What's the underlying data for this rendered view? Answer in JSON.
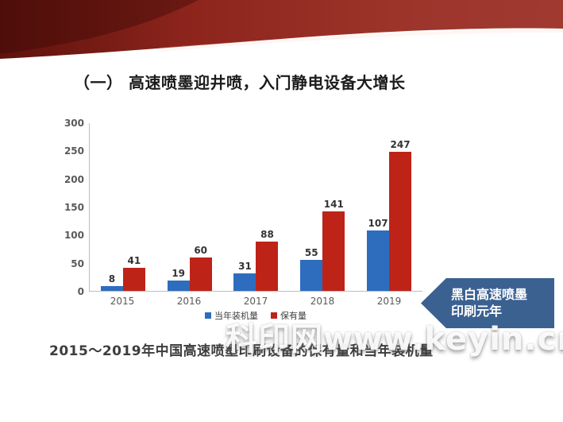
{
  "slide": {
    "title": "（一） 高速喷墨迎井喷，入门静电设备大增长",
    "caption": "2015～2019年中国高速喷墨印刷设备的保有量和当年装机量",
    "watermark": "科印网www.keyin.cn",
    "callout": {
      "line1": "黑白高速喷墨",
      "line2": "印刷元年",
      "color": "#3B6191"
    },
    "ribbon_colors": {
      "dark": "#631510",
      "mid": "#8E251D",
      "light": "#A03A31"
    }
  },
  "chart_data": {
    "type": "bar",
    "title": "",
    "xlabel": "",
    "ylabel": "",
    "categories": [
      "2015",
      "2016",
      "2017",
      "2018",
      "2019"
    ],
    "series": [
      {
        "name": "当年装机量",
        "color": "#2E6DBE",
        "values": [
          8,
          19,
          31,
          55,
          107
        ]
      },
      {
        "name": "保有量",
        "color": "#BE2318",
        "values": [
          41,
          60,
          88,
          141,
          247
        ]
      }
    ],
    "ylim": [
      0,
      300
    ],
    "y_ticks": [
      0,
      50,
      100,
      150,
      200,
      250,
      300
    ],
    "grid": false,
    "legend_position": "bottom"
  }
}
